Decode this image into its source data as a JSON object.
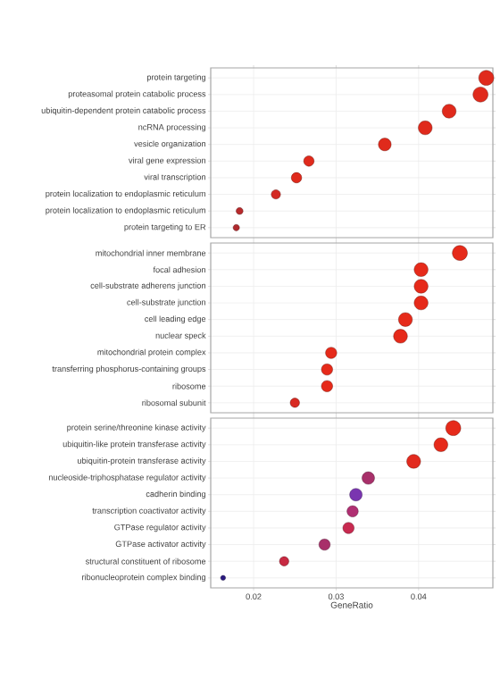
{
  "chart_data": [
    {
      "type": "bubble",
      "categories": [
        "protein targeting",
        "proteasomal protein catabolic process",
        "ubiquitin-dependent protein catabolic process",
        "ncRNA processing",
        "vesicle organization",
        "viral gene expression",
        "viral transcription",
        "protein localization to endoplasmic reticulum",
        "protein localization to endoplasmic reticulum",
        "protein targeting to ER"
      ],
      "values": [
        0.0482,
        0.0475,
        0.0437,
        0.0408,
        0.0359,
        0.0267,
        0.0252,
        0.0227,
        0.0183,
        0.0179
      ],
      "sizes": [
        1,
        1,
        0.85,
        0.85,
        0.72,
        0.48,
        0.48,
        0.38,
        0.21,
        0.18
      ],
      "colors": [
        "#e02a1c",
        "#e02a1c",
        "#e02a1c",
        "#e02a1c",
        "#e02a1c",
        "#e02a1c",
        "#e02a1c",
        "#d42a24",
        "#b82a2c",
        "#b02a2e"
      ],
      "xlim": [
        0.0148,
        0.049
      ],
      "xticks": [
        0.02,
        0.03,
        0.04
      ],
      "orientation": "horizontal",
      "tick_labels": "y",
      "grid": true
    },
    {
      "type": "bubble",
      "categories": [
        "mitochondrial inner membrane",
        "focal adhesion",
        "cell-substrate adherens junction",
        "cell-substrate junction",
        "cell leading edge",
        "nuclear speck",
        "mitochondrial protein complex",
        "transferring phosphorus-containing groups",
        "ribosome",
        "ribosomal subunit"
      ],
      "values": [
        0.045,
        0.0403,
        0.0403,
        0.0403,
        0.0384,
        0.0378,
        0.0294,
        0.0289,
        0.0289,
        0.025
      ],
      "sizes": [
        1,
        0.85,
        0.85,
        0.85,
        0.85,
        0.85,
        0.56,
        0.56,
        0.56,
        0.39
      ],
      "colors": [
        "#e62a1a",
        "#e62a1a",
        "#e62a1a",
        "#e62a1a",
        "#e62a1a",
        "#e62a1a",
        "#e62a1a",
        "#e62a1a",
        "#e62a1a",
        "#d82a22"
      ],
      "xlim": [
        0.0148,
        0.049
      ],
      "xticks": [
        0.02,
        0.03,
        0.04
      ],
      "orientation": "horizontal",
      "tick_labels": "y",
      "grid": true
    },
    {
      "type": "bubble",
      "categories": [
        "protein serine/threonine kinase activity",
        "ubiquitin-like protein transferase activity",
        "ubiquitin-protein transferase activity",
        "nucleoside-triphosphatase regulator activity",
        "cadherin binding",
        "transcription coactivator activity",
        "GTPase regulator activity",
        "GTPase activator activity",
        "structural constituent of ribosome",
        "ribonucleoprotein complex binding"
      ],
      "values": [
        0.0442,
        0.0427,
        0.0394,
        0.0339,
        0.0324,
        0.032,
        0.0315,
        0.0286,
        0.0237,
        0.0163
      ],
      "sizes": [
        1,
        0.85,
        0.85,
        0.69,
        0.69,
        0.56,
        0.56,
        0.56,
        0.39,
        0.11
      ],
      "colors": [
        "#e62a1a",
        "#e62a1a",
        "#e22a1e",
        "#a8306a",
        "#7a35b0",
        "#b02f72",
        "#c82a50",
        "#a8306a",
        "#c82a42",
        "#2a1a80"
      ],
      "xlim": [
        0.0148,
        0.049
      ],
      "xticks": [
        0.02,
        0.03,
        0.04
      ],
      "xlabel": "GeneRatio",
      "orientation": "horizontal",
      "grid": true
    }
  ]
}
